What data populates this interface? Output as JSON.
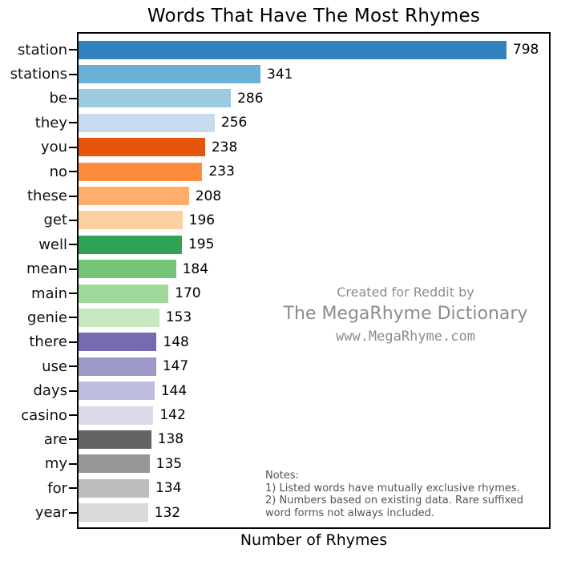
{
  "title": "Words That Have The Most Rhymes",
  "xlabel": "Number of Rhymes",
  "credit": {
    "line1": "Created for Reddit by",
    "line2": "The MegaRhyme Dictionary",
    "line3": "www.MegaRhyme.com"
  },
  "notes": {
    "heading": "Notes:",
    "lines": [
      "1) Listed words have mutually exclusive rhymes.",
      "2) Numbers based on existing data. Rare suffixed",
      "word forms not always included."
    ]
  },
  "chart_data": {
    "type": "bar",
    "orientation": "horizontal",
    "title": "Words That Have The Most Rhymes",
    "xlabel": "Number of Rhymes",
    "ylabel": "",
    "xlim": [
      0,
      880
    ],
    "grid": false,
    "legend": false,
    "categories": [
      "station",
      "stations",
      "be",
      "they",
      "you",
      "no",
      "these",
      "get",
      "well",
      "mean",
      "main",
      "genie",
      "there",
      "use",
      "days",
      "casino",
      "are",
      "my",
      "for",
      "year"
    ],
    "values": [
      798,
      341,
      286,
      256,
      238,
      233,
      208,
      196,
      195,
      184,
      170,
      153,
      148,
      147,
      144,
      142,
      138,
      135,
      134,
      132
    ],
    "bar_colors": [
      "#3182bd",
      "#6baed6",
      "#9ecae1",
      "#c6dbef",
      "#e6550d",
      "#fd8d3c",
      "#fdae6b",
      "#fdd0a2",
      "#31a354",
      "#74c476",
      "#a1d99b",
      "#c7e9c0",
      "#756bb1",
      "#9e9ac8",
      "#bcbddc",
      "#dadaeb",
      "#636363",
      "#969696",
      "#bdbdbd",
      "#d9d9d9"
    ],
    "frame_color": "#000000",
    "value_label_color": "#000000",
    "credit_text_color": "#8c8c8c",
    "notes_text_color": "#555555"
  }
}
